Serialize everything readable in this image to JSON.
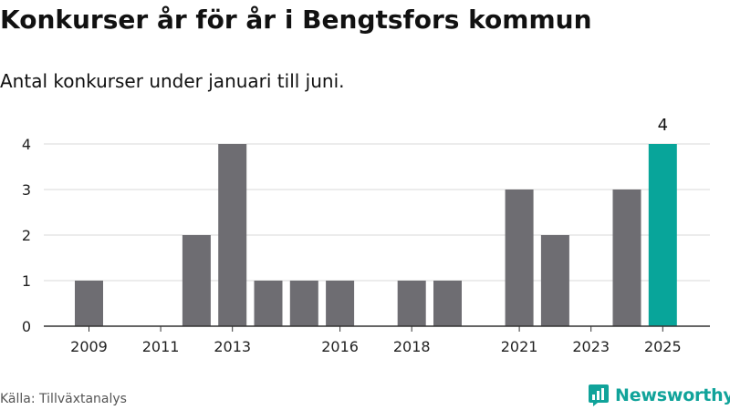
{
  "header": {
    "title": "Konkurser år för år i Bengtsfors kommun",
    "subtitle": "Antal konkurser under januari till juni."
  },
  "footer": {
    "source": "Källa: Tillväxtanalys",
    "brand": "Newsworthy"
  },
  "colors": {
    "bar": "#6e6d72",
    "highlight": "#08a59a",
    "grid": "#d9d9d9",
    "brand": "#10a39a"
  },
  "icons": {
    "brand_logo": "newsworthy-logo-icon"
  },
  "chart_data": {
    "type": "bar",
    "title": "Konkurser år för år i Bengtsfors kommun",
    "subtitle": "Antal konkurser under januari till juni.",
    "xlabel": "",
    "ylabel": "",
    "categories": [
      "2009",
      "2010",
      "2011",
      "2012",
      "2013",
      "2014",
      "2015",
      "2016",
      "2017",
      "2018",
      "2019",
      "2020",
      "2021",
      "2022",
      "2023",
      "2024",
      "2025"
    ],
    "values": [
      1,
      0,
      0,
      2,
      4,
      1,
      1,
      1,
      0,
      1,
      1,
      0,
      3,
      2,
      0,
      3,
      4
    ],
    "x_tick_labels": [
      "2009",
      "2011",
      "2013",
      "2016",
      "2018",
      "2021",
      "2023",
      "2025"
    ],
    "y_ticks": [
      0,
      1,
      2,
      3,
      4
    ],
    "ylim": [
      0,
      4
    ],
    "highlight_category": "2025",
    "data_labels": [
      {
        "category": "2025",
        "text": "4"
      }
    ],
    "grid": "horizontal",
    "legend": "none"
  }
}
